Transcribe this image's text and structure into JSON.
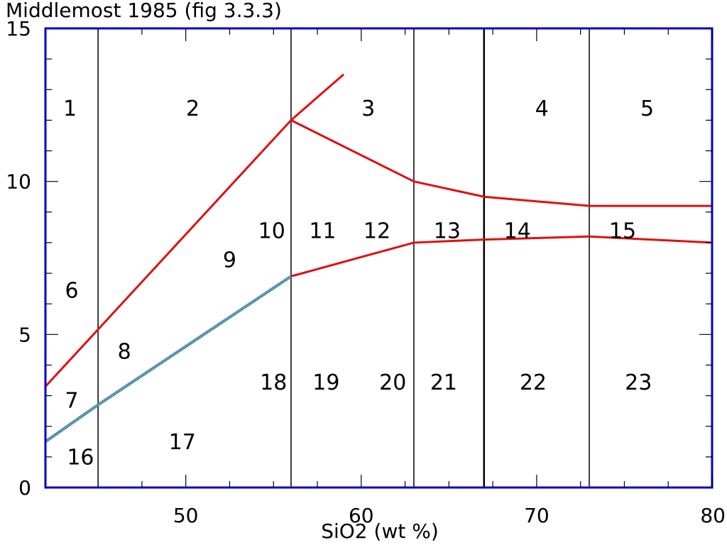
{
  "chart_data": {
    "type": "line",
    "title": "Middlemost 1985 (fig 3.3.3)",
    "xlabel": "SiO2  (wt %)",
    "ylabel": "",
    "xlim": [
      42,
      80
    ],
    "ylim": [
      0,
      15
    ],
    "x_ticks": [
      50,
      60,
      70,
      80
    ],
    "y_ticks": [
      0,
      5,
      10,
      15
    ],
    "grid": false,
    "colors": {
      "axes": "#0000cc",
      "red": "#e01010",
      "cyan": "#3cb4b4",
      "black": "#000000"
    },
    "vertical_lines_x": [
      45,
      56,
      63,
      67,
      73
    ],
    "series": [
      {
        "color": "red",
        "x": [
          42,
          56,
          59
        ],
        "y": [
          3.3,
          12.0,
          13.5
        ]
      },
      {
        "color": "red",
        "x": [
          56,
          63,
          67,
          73,
          80
        ],
        "y": [
          12.0,
          10.0,
          9.5,
          9.2,
          9.2
        ]
      },
      {
        "color": "red",
        "x": [
          56,
          63,
          67,
          73,
          80
        ],
        "y": [
          6.9,
          8.0,
          8.1,
          8.2,
          8.0
        ]
      },
      {
        "color": "cyan",
        "x": [
          42,
          45,
          56
        ],
        "y": [
          1.5,
          2.7,
          6.9
        ]
      }
    ],
    "field_labels": [
      {
        "text": "1",
        "x": 43.4,
        "y": 12.35
      },
      {
        "text": "2",
        "x": 50.4,
        "y": 12.35
      },
      {
        "text": "3",
        "x": 60.4,
        "y": 12.35
      },
      {
        "text": "4",
        "x": 70.3,
        "y": 12.35
      },
      {
        "text": "5",
        "x": 76.3,
        "y": 12.35
      },
      {
        "text": "6",
        "x": 43.5,
        "y": 6.4
      },
      {
        "text": "7",
        "x": 43.5,
        "y": 2.8
      },
      {
        "text": "8",
        "x": 46.5,
        "y": 4.4
      },
      {
        "text": "9",
        "x": 52.5,
        "y": 7.4
      },
      {
        "text": "10",
        "x": 54.9,
        "y": 8.35
      },
      {
        "text": "11",
        "x": 57.8,
        "y": 8.35
      },
      {
        "text": "12",
        "x": 60.9,
        "y": 8.35
      },
      {
        "text": "13",
        "x": 64.9,
        "y": 8.35
      },
      {
        "text": "14",
        "x": 68.9,
        "y": 8.35
      },
      {
        "text": "15",
        "x": 74.9,
        "y": 8.35
      },
      {
        "text": "16",
        "x": 44.0,
        "y": 0.95
      },
      {
        "text": "17",
        "x": 49.8,
        "y": 1.45
      },
      {
        "text": "18",
        "x": 55.0,
        "y": 3.4
      },
      {
        "text": "19",
        "x": 58.0,
        "y": 3.4
      },
      {
        "text": "20",
        "x": 61.8,
        "y": 3.4
      },
      {
        "text": "21",
        "x": 64.7,
        "y": 3.4
      },
      {
        "text": "22",
        "x": 69.8,
        "y": 3.4
      },
      {
        "text": "23",
        "x": 75.8,
        "y": 3.4
      }
    ]
  }
}
